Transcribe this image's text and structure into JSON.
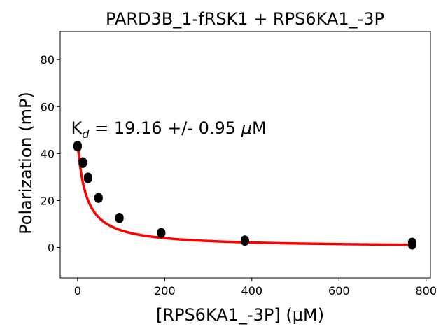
{
  "chart_data": {
    "type": "scatter",
    "title": "PARD3B_1-fRSK1 + RPS6KA1_-3P",
    "xlabel": "[RPS6KA1_-3P] (μM)",
    "ylabel": "Polarization (mP)",
    "xlim": [
      -40,
      810
    ],
    "ylim": [
      -13,
      92
    ],
    "xticks": [
      0,
      200,
      400,
      600,
      800
    ],
    "yticks": [
      0,
      20,
      40,
      60,
      80
    ],
    "xtick_labels": [
      "0",
      "200",
      "400",
      "600",
      "800"
    ],
    "ytick_labels": [
      "0",
      "20",
      "40",
      "60",
      "80"
    ],
    "grid": false,
    "annotation": {
      "prefix": "K",
      "subscript": "d",
      "equals": " = 19.16 +/- 0.95 ",
      "mu": "μ",
      "unit": "M",
      "x": -15,
      "y": 48.5
    },
    "points": {
      "color": "#000000",
      "x": [
        0,
        0,
        12,
        12,
        24,
        24,
        48,
        48,
        96,
        96,
        192,
        192,
        384,
        384,
        768,
        768
      ],
      "y": [
        43.5,
        42.8,
        36.5,
        35.8,
        30.0,
        29.3,
        21.3,
        20.9,
        12.8,
        12.3,
        6.4,
        6.0,
        3.2,
        2.6,
        2.2,
        1.0
      ]
    },
    "fit": {
      "color": "#ff0000",
      "model": "one-site binding",
      "Kd": 19.16,
      "top": 45.2,
      "bottom": 0.0,
      "x_range": [
        0,
        768
      ]
    }
  }
}
